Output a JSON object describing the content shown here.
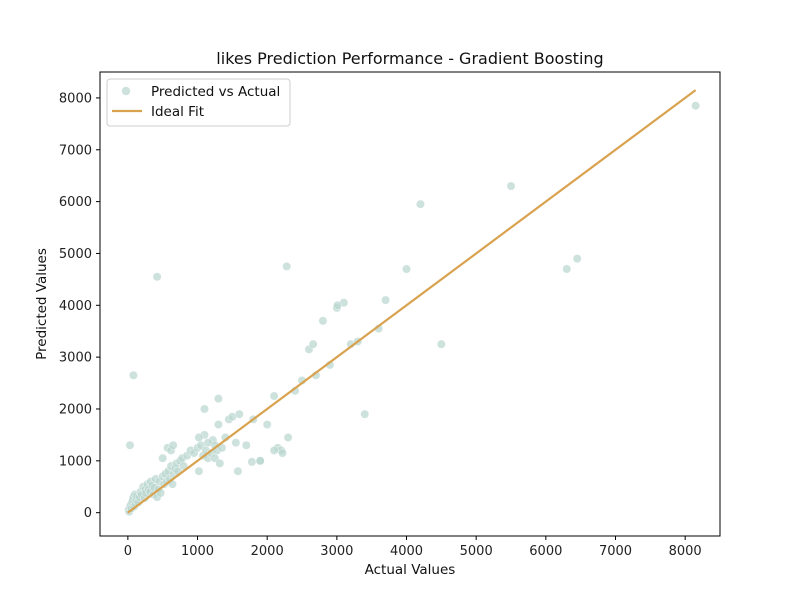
{
  "chart_data": {
    "type": "scatter",
    "title": "likes Prediction Performance - Gradient Boosting",
    "xlabel": "Actual Values",
    "ylabel": "Predicted Values",
    "xlim": [
      -400,
      8500
    ],
    "ylim": [
      -450,
      8500
    ],
    "xticks": [
      0,
      1000,
      2000,
      3000,
      4000,
      5000,
      6000,
      7000,
      8000
    ],
    "yticks": [
      0,
      1000,
      2000,
      3000,
      4000,
      5000,
      6000,
      7000,
      8000
    ],
    "grid": false,
    "legend_position": "top-left",
    "colors": {
      "points": "#b9d6cf",
      "line": "#d9a24f"
    },
    "series": [
      {
        "name": "Predicted vs Actual",
        "kind": "scatter",
        "x": [
          10,
          20,
          30,
          40,
          50,
          60,
          70,
          80,
          90,
          100,
          110,
          120,
          130,
          150,
          170,
          180,
          200,
          220,
          240,
          250,
          260,
          280,
          300,
          320,
          330,
          350,
          370,
          380,
          400,
          420,
          440,
          450,
          470,
          500,
          520,
          540,
          560,
          580,
          600,
          620,
          640,
          660,
          680,
          700,
          720,
          750,
          780,
          800,
          850,
          900,
          950,
          1000,
          1020,
          1050,
          1080,
          1100,
          1120,
          1150,
          1200,
          1220,
          1250,
          1280,
          1300,
          1350,
          1400,
          1450,
          1500,
          1550,
          1600,
          1700,
          1800,
          1900,
          2000,
          2100,
          2150,
          2200,
          2300,
          2400,
          2500,
          2600,
          2700,
          2800,
          2900,
          3000,
          3100,
          3200,
          3400,
          3600,
          3700,
          4000,
          4200,
          4500,
          5500,
          6300,
          6450,
          8150,
          30,
          80,
          420,
          2280,
          1100,
          1300,
          570,
          620,
          500,
          650,
          1020,
          1150,
          1250,
          1320,
          1580,
          1780,
          1900,
          2100,
          2220,
          2660,
          3010,
          3300
        ],
        "y": [
          60,
          20,
          100,
          150,
          80,
          200,
          250,
          300,
          120,
          350,
          180,
          250,
          320,
          200,
          300,
          400,
          350,
          500,
          280,
          450,
          380,
          550,
          450,
          400,
          600,
          520,
          350,
          480,
          650,
          300,
          450,
          600,
          380,
          700,
          550,
          750,
          600,
          800,
          650,
          900,
          550,
          750,
          850,
          950,
          800,
          1000,
          1050,
          900,
          1100,
          1200,
          1150,
          1250,
          800,
          1300,
          1100,
          1500,
          1200,
          1050,
          1150,
          1400,
          1300,
          1200,
          1700,
          1250,
          1450,
          1800,
          1850,
          1350,
          1900,
          1300,
          1800,
          1000,
          1700,
          2250,
          1250,
          1200,
          1450,
          2350,
          2550,
          3150,
          2650,
          3700,
          2850,
          3950,
          4050,
          3250,
          1900,
          3550,
          4100,
          4700,
          5950,
          3250,
          6300,
          4700,
          4900,
          7850,
          1300,
          2650,
          4550,
          4750,
          2000,
          2200,
          1250,
          1200,
          1050,
          1300,
          1450,
          1350,
          1050,
          950,
          800,
          980,
          1000,
          1200,
          1150,
          3250,
          4000,
          3300
        ]
      },
      {
        "name": "Ideal Fit",
        "kind": "line",
        "x": [
          0,
          8150
        ],
        "y": [
          0,
          8150
        ]
      }
    ]
  }
}
